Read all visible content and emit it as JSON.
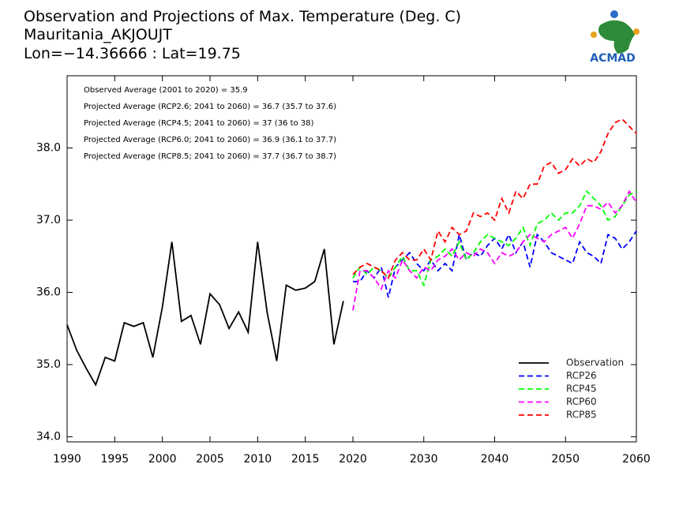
{
  "chart_data": {
    "type": "line",
    "title": [
      "Observation and Projections of Max. Temperature (Deg. C)",
      "Mauritania_AKJOUJT",
      "Lon=−14.36666 : Lat=19.75"
    ],
    "logo": "ACMAD",
    "annotations": [
      "Observed Average (2001 to 2020) = 35.9",
      "Projected Average (RCP2.6; 2041 to 2060) = 36.7 (35.7 to 37.6)",
      "Projected Average (RCP4.5; 2041 to 2060) = 37 (36 to 38)",
      "Projected Average (RCP6.0; 2041 to 2060) = 36.9 (36.1 to 37.7)",
      "Projected Average (RCP8.5; 2041 to 2060) = 37.7 (36.7 to 38.7)"
    ],
    "xlim": [
      1990,
      2060
    ],
    "xticks": [
      1990,
      1995,
      2000,
      2005,
      2010,
      2015,
      2020,
      2030,
      2040,
      2050,
      2060
    ],
    "ylim": [
      33.93,
      39.0
    ],
    "yticks": [
      {
        "value": 34,
        "label": "34.0"
      },
      {
        "value": 35,
        "label": "35.0"
      },
      {
        "value": 36,
        "label": "36.0"
      },
      {
        "value": 37,
        "label": "37.0"
      },
      {
        "value": 38,
        "label": "38.0"
      }
    ],
    "legend": "lower right",
    "series": [
      {
        "name": "Observation",
        "color": "#000000",
        "dashed": false,
        "x": [
          1990,
          1991,
          1992,
          1993,
          1994,
          1995,
          1996,
          1997,
          1998,
          1999,
          2000,
          2001,
          2002,
          2003,
          2004,
          2005,
          2006,
          2007,
          2008,
          2009,
          2010,
          2011,
          2012,
          2013,
          2014,
          2015,
          2016,
          2017,
          2018,
          2019
        ],
        "values": [
          35.55,
          35.2,
          34.95,
          34.72,
          35.1,
          35.05,
          35.58,
          35.53,
          35.58,
          35.1,
          35.8,
          36.7,
          35.6,
          35.68,
          35.28,
          35.98,
          35.83,
          35.5,
          35.73,
          35.45,
          36.7,
          35.72,
          35.05,
          36.1,
          36.03,
          36.06,
          36.15,
          36.6,
          35.28,
          35.88
        ]
      },
      {
        "name": "RCP26",
        "color": "#0000ff",
        "dashed": true,
        "x": [
          2020,
          2021,
          2022,
          2023,
          2024,
          2025,
          2026,
          2027,
          2028,
          2029,
          2030,
          2031,
          2032,
          2033,
          2034,
          2035,
          2036,
          2037,
          2038,
          2039,
          2040,
          2041,
          2042,
          2043,
          2044,
          2045,
          2046,
          2047,
          2048,
          2049,
          2050,
          2051,
          2052,
          2053,
          2054,
          2055,
          2056,
          2057,
          2058,
          2059,
          2060
        ],
        "values": [
          36.15,
          36.15,
          36.3,
          36.2,
          36.35,
          35.93,
          36.35,
          36.45,
          36.55,
          36.4,
          36.3,
          36.45,
          36.3,
          36.4,
          36.3,
          36.8,
          36.45,
          36.55,
          36.5,
          36.65,
          36.75,
          36.6,
          36.8,
          36.55,
          36.7,
          36.35,
          36.8,
          36.7,
          36.55,
          36.5,
          36.45,
          36.4,
          36.7,
          36.55,
          36.5,
          36.4,
          36.8,
          36.75,
          36.6,
          36.7,
          36.85
        ]
      },
      {
        "name": "RCP45",
        "color": "#00ff00",
        "dashed": true,
        "x": [
          2020,
          2021,
          2022,
          2023,
          2024,
          2025,
          2026,
          2027,
          2028,
          2029,
          2030,
          2031,
          2032,
          2033,
          2034,
          2035,
          2036,
          2037,
          2038,
          2039,
          2040,
          2041,
          2042,
          2043,
          2044,
          2045,
          2046,
          2047,
          2048,
          2049,
          2050,
          2051,
          2052,
          2053,
          2054,
          2055,
          2056,
          2057,
          2058,
          2059,
          2060
        ],
        "values": [
          36.2,
          36.35,
          36.25,
          36.35,
          36.3,
          36.2,
          36.35,
          36.5,
          36.3,
          36.3,
          36.1,
          36.45,
          36.5,
          36.6,
          36.5,
          36.7,
          36.45,
          36.55,
          36.7,
          36.8,
          36.75,
          36.7,
          36.65,
          36.75,
          36.9,
          36.65,
          36.95,
          37.0,
          37.1,
          37.0,
          37.1,
          37.1,
          37.2,
          37.4,
          37.3,
          37.2,
          37.0,
          37.05,
          37.2,
          37.35,
          37.4
        ]
      },
      {
        "name": "RCP60",
        "color": "#ff00ff",
        "dashed": true,
        "x": [
          2020,
          2021,
          2022,
          2023,
          2024,
          2025,
          2026,
          2027,
          2028,
          2029,
          2030,
          2031,
          2032,
          2033,
          2034,
          2035,
          2036,
          2037,
          2038,
          2039,
          2040,
          2041,
          2042,
          2043,
          2044,
          2045,
          2046,
          2047,
          2048,
          2049,
          2050,
          2051,
          2052,
          2053,
          2054,
          2055,
          2056,
          2057,
          2058,
          2059,
          2060
        ],
        "values": [
          35.75,
          36.3,
          36.3,
          36.2,
          36.05,
          36.3,
          36.2,
          36.45,
          36.3,
          36.2,
          36.35,
          36.3,
          36.45,
          36.5,
          36.6,
          36.45,
          36.55,
          36.5,
          36.6,
          36.55,
          36.4,
          36.55,
          36.5,
          36.55,
          36.7,
          36.8,
          36.75,
          36.7,
          36.8,
          36.85,
          36.9,
          36.75,
          36.95,
          37.2,
          37.2,
          37.15,
          37.25,
          37.1,
          37.2,
          37.4,
          37.25
        ]
      },
      {
        "name": "RCP85",
        "color": "#ff0000",
        "dashed": true,
        "x": [
          2020,
          2021,
          2022,
          2023,
          2024,
          2025,
          2026,
          2027,
          2028,
          2029,
          2030,
          2031,
          2032,
          2033,
          2034,
          2035,
          2036,
          2037,
          2038,
          2039,
          2040,
          2041,
          2042,
          2043,
          2044,
          2045,
          2046,
          2047,
          2048,
          2049,
          2050,
          2051,
          2052,
          2053,
          2054,
          2055,
          2056,
          2057,
          2058,
          2059,
          2060
        ],
        "values": [
          36.25,
          36.35,
          36.4,
          36.35,
          36.3,
          36.2,
          36.45,
          36.55,
          36.45,
          36.45,
          36.6,
          36.45,
          36.85,
          36.7,
          36.9,
          36.8,
          36.85,
          37.1,
          37.05,
          37.1,
          37.0,
          37.3,
          37.1,
          37.4,
          37.3,
          37.5,
          37.5,
          37.75,
          37.8,
          37.65,
          37.7,
          37.85,
          37.75,
          37.85,
          37.8,
          37.95,
          38.2,
          38.35,
          38.4,
          38.3,
          38.2
        ]
      }
    ]
  }
}
